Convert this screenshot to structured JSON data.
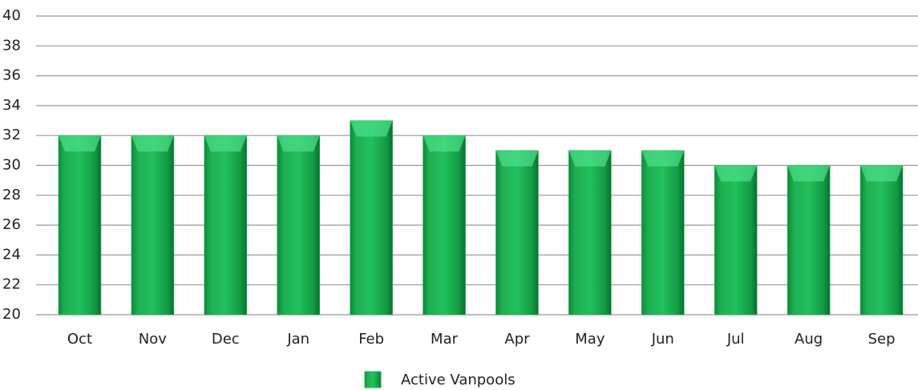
{
  "chart_data": {
    "type": "bar",
    "categories": [
      "Oct",
      "Nov",
      "Dec",
      "Jan",
      "Feb",
      "Mar",
      "Apr",
      "May",
      "Jun",
      "Jul",
      "Aug",
      "Sep"
    ],
    "series": [
      {
        "name": "Active Vanpools",
        "color": "#1db954",
        "values": [
          32,
          32,
          32,
          32,
          33,
          32,
          31,
          31,
          31,
          30,
          30,
          30
        ]
      }
    ],
    "ylim": [
      20,
      40
    ],
    "yticks": [
      20,
      22,
      24,
      26,
      28,
      30,
      32,
      34,
      36,
      38,
      40
    ],
    "grid": true,
    "legend": "bottom"
  }
}
